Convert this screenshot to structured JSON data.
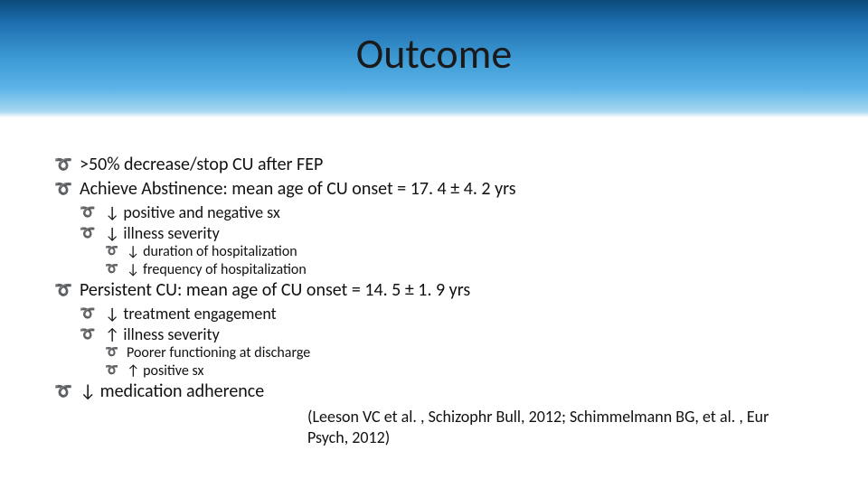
{
  "header": {
    "title": "Outcome"
  },
  "bullets": {
    "l1_a": ">50% decrease/stop CU after FEP",
    "l1_b": "Achieve Abstinence: mean age of CU onset = 17. 4 ± 4. 2 yrs",
    "l2_b1": "↓ positive and negative sx",
    "l2_b2": "↓ illness severity",
    "l3_b2a": "↓ duration of hospitalization",
    "l3_b2b": "↓ frequency of hospitalization",
    "l1_c": "Persistent CU: mean age of CU onset = 14. 5 ± 1. 9 yrs",
    "l2_c1": "↓ treatment engagement",
    "l2_c2": "↑ illness severity",
    "l3_c2a": "Poorer functioning at discharge",
    "l3_c2b": "↑ positive sx",
    "l1_d": "↓ medication adherence"
  },
  "citation": "(Leeson VC et al. , Schizophr Bull, 2012; Schimmelmann BG, et al. , Eur Psych, 2012)",
  "colors": {
    "header_gradient_top": "#0a4a7a",
    "header_gradient_bottom": "#a8d8f0",
    "background": "#ffffff",
    "text": "#111111"
  },
  "typography": {
    "title_fontsize": 46,
    "l1_fontsize": 20,
    "l2_fontsize": 18,
    "l3_fontsize": 16,
    "citation_fontsize": 18,
    "font_family": "Calibri"
  }
}
